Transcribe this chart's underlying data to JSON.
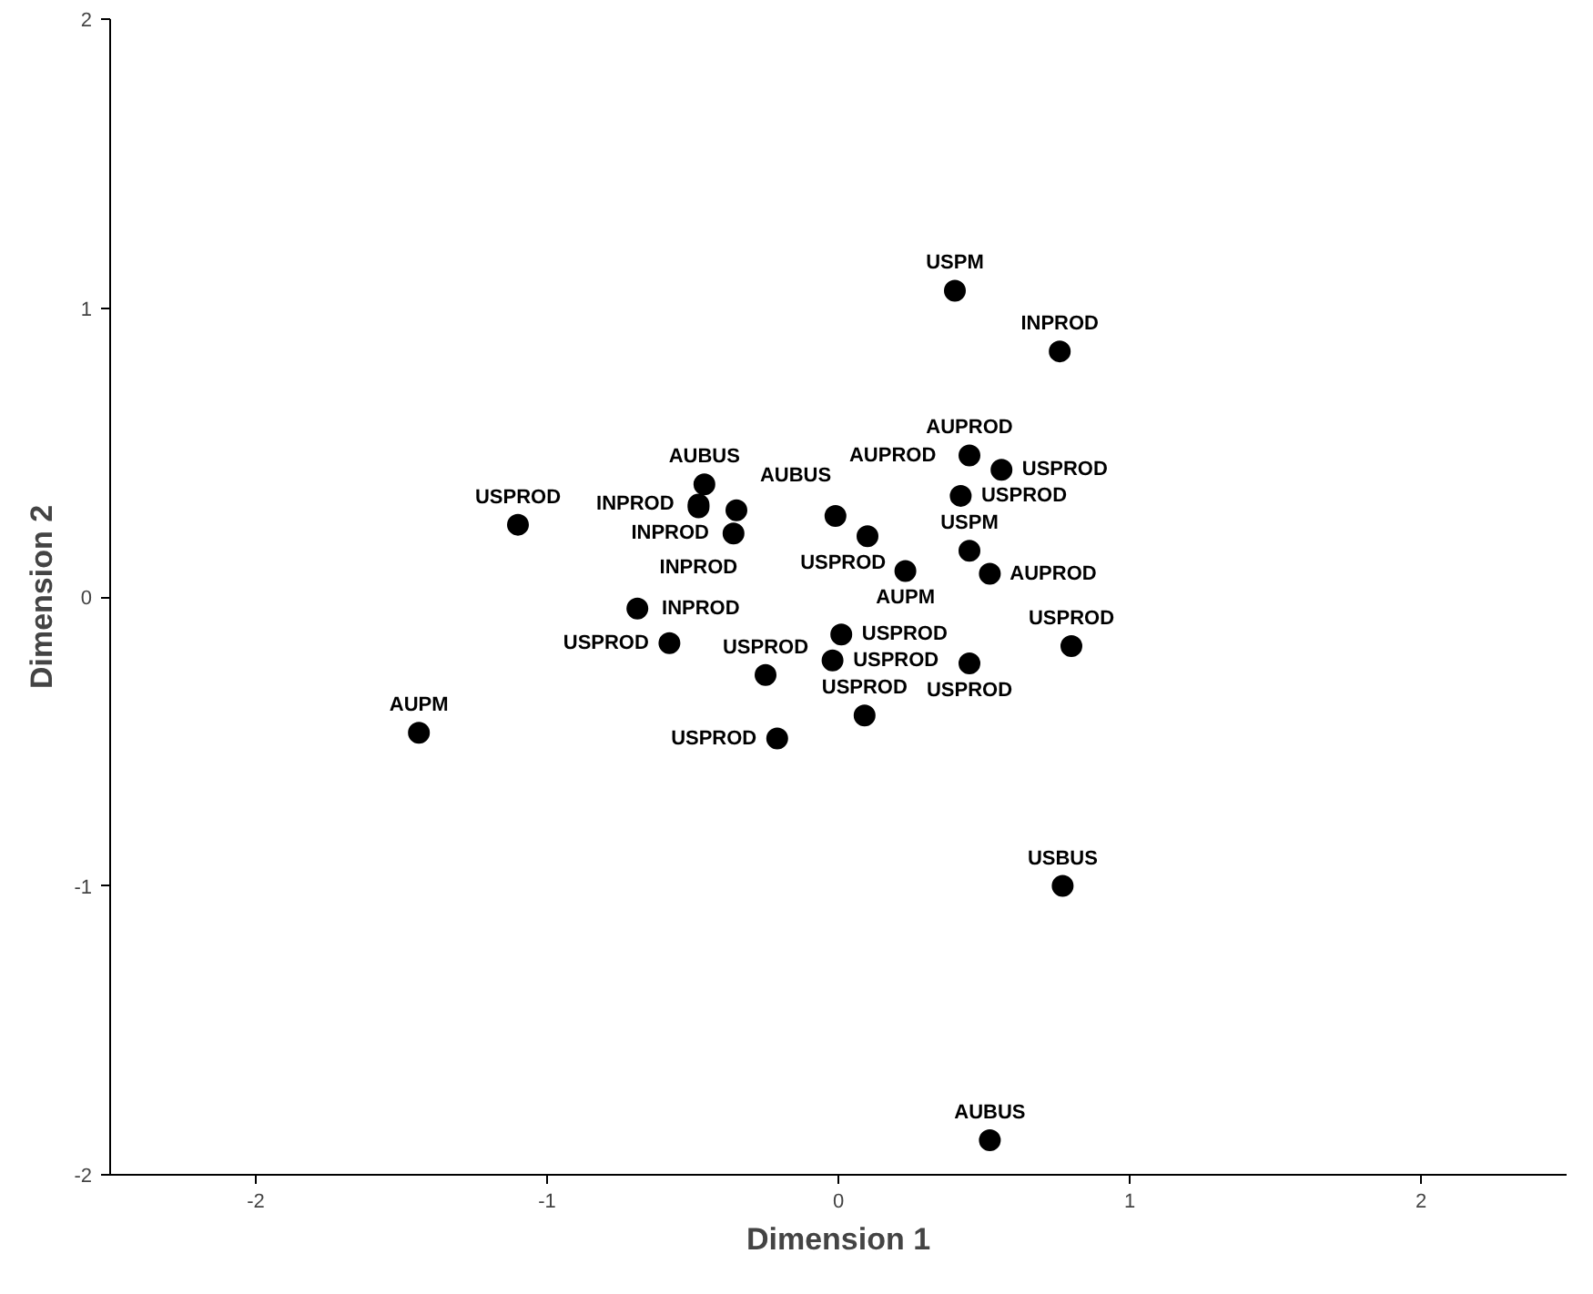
{
  "chart_data": {
    "type": "scatter",
    "xlabel": "Dimension 1",
    "ylabel": "Dimension 2",
    "xlim": [
      -2.5,
      2.5
    ],
    "ylim": [
      -2,
      2
    ],
    "xticks": [
      -2,
      -1,
      0,
      1,
      2
    ],
    "yticks": [
      -2,
      -1,
      0,
      1,
      2
    ],
    "grid": false,
    "marker": "circle",
    "series": [
      {
        "color": "#000000",
        "x": [
          0.4,
          0.76,
          0.45,
          0.56,
          0.42,
          0.45,
          0.52,
          0.8,
          -0.01,
          0.1,
          0.23,
          0.01,
          -0.02,
          0.45,
          0.09,
          -0.25,
          -0.21,
          -0.58,
          -0.69,
          -1.1,
          -0.46,
          -0.48,
          -0.48,
          -0.35,
          -0.36,
          -1.44,
          0.77,
          0.52
        ],
        "values": [
          1.06,
          0.85,
          0.49,
          0.44,
          0.35,
          0.16,
          0.08,
          -0.17,
          0.28,
          0.21,
          0.09,
          -0.13,
          -0.22,
          -0.23,
          -0.41,
          -0.27,
          -0.49,
          -0.16,
          -0.04,
          0.25,
          0.39,
          0.32,
          0.31,
          0.3,
          0.22,
          -0.47,
          -1.0,
          -1.88
        ],
        "value_labels": [
          "USPM",
          "INPROD",
          "AUPROD",
          "USPROD",
          "USPROD",
          "USPM",
          "AUPROD",
          "USPROD",
          "AUPROD",
          "USPROD",
          "AUPM",
          "USPROD",
          "USPROD",
          "USPROD",
          "USPROD",
          "USPROD",
          "USPROD",
          "USPROD",
          "INPROD",
          "USPROD",
          "AUBUS",
          "INPROD",
          "INPROD",
          "AUBUS",
          "INPROD",
          "AUPM",
          "USBUS",
          "AUBUS"
        ]
      }
    ]
  }
}
